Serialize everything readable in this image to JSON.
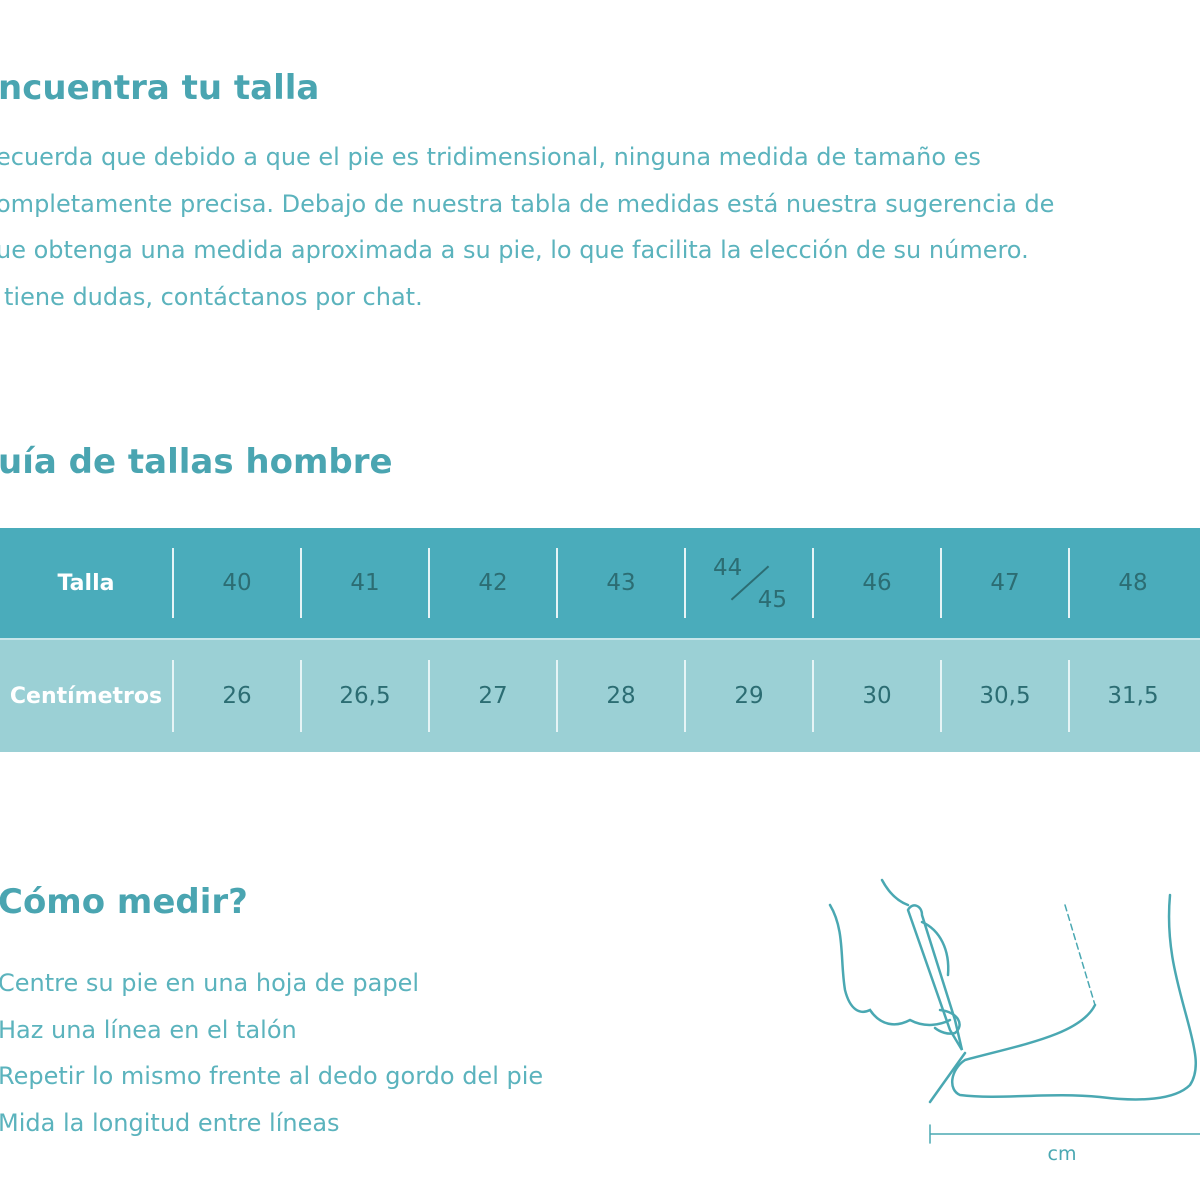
{
  "intro": {
    "title": "ncuentra tu talla",
    "lines": [
      "ecuerda que debido a que el pie es tridimensional, ninguna medida de tamaño es",
      "ompletamente precisa. Debajo de nuestra tabla de medidas está nuestra sugerencia de",
      "ue obtenga una medida aproximada a su pie, lo que facilita la elección de su número.",
      "tiene dudas, contáctanos por chat."
    ]
  },
  "guide": {
    "title": "uía de tallas hombre",
    "table": {
      "row_labels": [
        "Talla",
        "Centímetros"
      ],
      "sizes": [
        "40",
        "41",
        "42",
        "43",
        {
          "top": "44",
          "bottom": "45"
        },
        "46",
        "47",
        "48"
      ],
      "cm": [
        "26",
        "26,5",
        "27",
        "28",
        "29",
        "30",
        "30,5",
        "31,5"
      ]
    }
  },
  "howto": {
    "title": "Cómo medir?",
    "steps": [
      "Centre su pie en una hoja de papel",
      "Haz una línea en el talón",
      "Repetir lo mismo frente al dedo gordo del pie",
      "Mida la longitud entre líneas"
    ],
    "illustration_label": "cm"
  },
  "colors": {
    "heading": "#4aa5b1",
    "text": "#5bb3bd",
    "table_header": "#4aacbb",
    "table_row": "#9bd0d5",
    "cell_text": "#2c6d73"
  }
}
